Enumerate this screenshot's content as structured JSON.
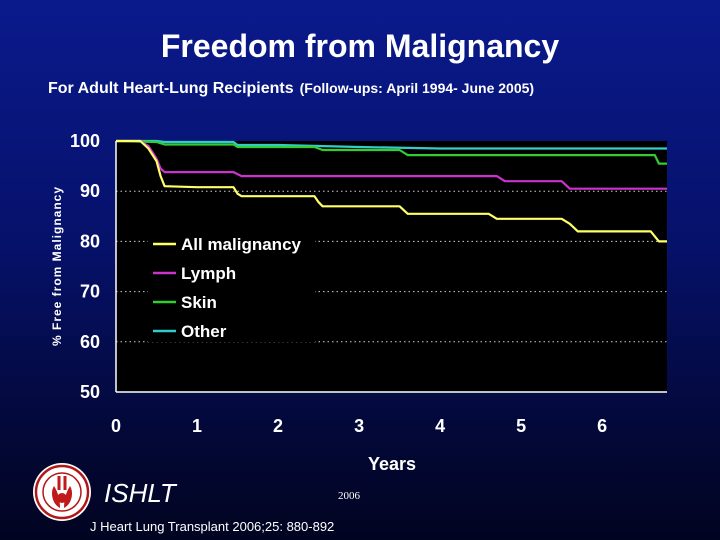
{
  "header": {
    "title": "Freedom from Malignancy",
    "subtitle": "For Adult Heart-Lung Recipients",
    "followup_note": "(Follow-ups: April 1994- June 2005)"
  },
  "footer": {
    "org": "ISHLT",
    "year": "2006",
    "citation": "J Heart Lung Transplant 2006;25: 880-892"
  },
  "colors": {
    "background": "#06116a",
    "plot_bg": "#000000",
    "all_malignancy": "#ffff66",
    "lymph": "#cc33cc",
    "skin": "#33cc33",
    "other": "#33cccc"
  },
  "chart_data": {
    "type": "line",
    "step": true,
    "xlabel": "Years",
    "ylabel": "% Free from Malignancy",
    "xlim": [
      0,
      6.8
    ],
    "ylim": [
      50,
      100
    ],
    "xticks": [
      0,
      1,
      2,
      3,
      4,
      5,
      6
    ],
    "yticks": [
      50,
      60,
      70,
      80,
      90,
      100
    ],
    "grid": "horizontal dotted",
    "legend": "center-left",
    "series": [
      {
        "name": "All malignancy",
        "color": "#ffff66",
        "x": [
          0,
          0.3,
          0.4,
          0.5,
          0.55,
          0.6,
          1.0,
          1.45,
          1.5,
          1.55,
          2.0,
          2.45,
          2.5,
          2.55,
          3.0,
          3.5,
          3.6,
          4.0,
          4.6,
          4.7,
          5.0,
          5.5,
          5.6,
          5.7,
          6.0,
          6.6,
          6.7,
          6.8
        ],
        "values": [
          100,
          100,
          98.5,
          96,
          93,
          91,
          90.8,
          90.8,
          89.5,
          89,
          89,
          89,
          87.8,
          87,
          87,
          87,
          85.5,
          85.5,
          85.5,
          84.5,
          84.5,
          84.5,
          83.5,
          82,
          82,
          82,
          80,
          80
        ]
      },
      {
        "name": "Lymph",
        "color": "#cc33cc",
        "x": [
          0,
          0.3,
          0.4,
          0.5,
          0.55,
          0.6,
          1.0,
          1.45,
          1.55,
          2.0,
          3.0,
          4.0,
          4.7,
          4.8,
          5.0,
          5.5,
          5.6,
          6.0,
          6.8
        ],
        "values": [
          100,
          100,
          99,
          96.5,
          94.5,
          93.8,
          93.8,
          93.8,
          93,
          93,
          93,
          93,
          93,
          92,
          92,
          92,
          90.5,
          90.5,
          90.5
        ]
      },
      {
        "name": "Skin",
        "color": "#33cc33",
        "x": [
          0,
          0.5,
          0.6,
          1.0,
          1.45,
          1.5,
          2.0,
          2.45,
          2.55,
          3.0,
          3.5,
          3.6,
          4.0,
          5.0,
          6.0,
          6.65,
          6.7,
          6.8
        ],
        "values": [
          100,
          99.8,
          99.3,
          99.3,
          99.3,
          98.8,
          98.8,
          98.8,
          98.2,
          98.2,
          98.2,
          97.2,
          97.2,
          97.2,
          97.2,
          97.2,
          95.5,
          95.5
        ]
      },
      {
        "name": "Other",
        "color": "#33cccc",
        "x": [
          0,
          0.5,
          0.6,
          1.0,
          1.45,
          1.5,
          2.0,
          3.0,
          4.0,
          5.0,
          6.0,
          6.8
        ],
        "values": [
          100,
          100,
          99.8,
          99.8,
          99.8,
          99.2,
          99.2,
          98.8,
          98.5,
          98.5,
          98.5,
          98.5
        ]
      }
    ]
  }
}
